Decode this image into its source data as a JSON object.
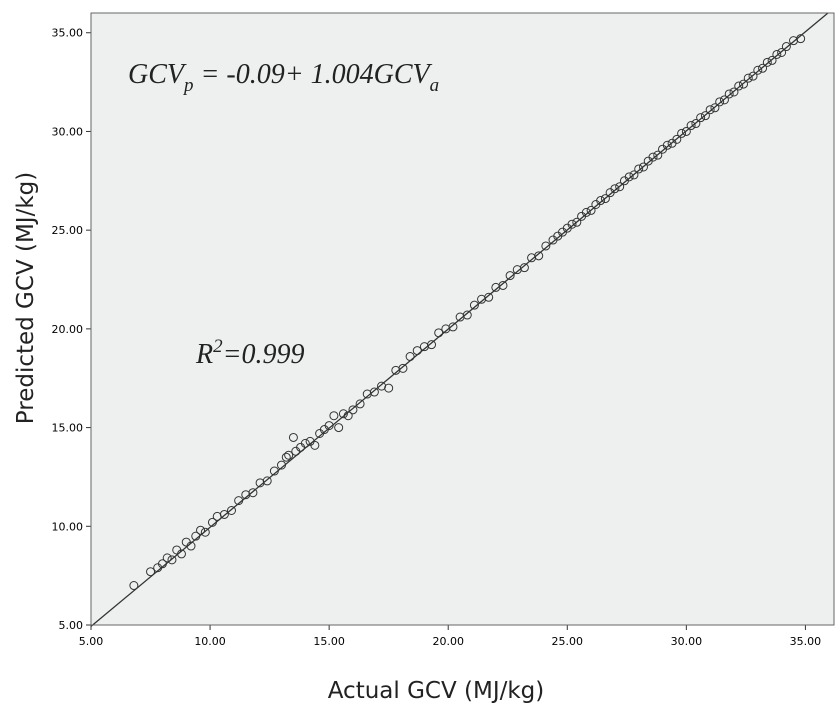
{
  "chart_data": {
    "type": "scatter",
    "title": "",
    "xlabel": "Actual GCV (MJ/kg)",
    "ylabel": "Predicted GCV (MJ/kg)",
    "xlim": [
      5,
      36.2
    ],
    "ylim": [
      5,
      36.0
    ],
    "x_ticks": [
      5,
      10,
      15,
      20,
      25,
      30,
      35
    ],
    "y_ticks": [
      5,
      10,
      15,
      20,
      25,
      30,
      35
    ],
    "x_tick_labels": [
      "5.00",
      "10.00",
      "15.00",
      "20.00",
      "25.00",
      "30.00",
      "35.00"
    ],
    "y_tick_labels": [
      "5.00",
      "10.00",
      "15.00",
      "20.00",
      "25.00",
      "30.00",
      "35.00"
    ],
    "grid": false,
    "legend": "none",
    "fit_line": {
      "intercept": -0.09,
      "slope": 1.004
    },
    "annotations": {
      "equation": {
        "lhs": "GCV",
        "lhs_sub": "p",
        "middle": " = -0.09+ 1.004GCV",
        "rhs_sub": "a"
      },
      "r_squared": {
        "base": "R",
        "sup": "2",
        "rest": "=0.999"
      }
    },
    "points": [
      [
        6.8,
        7.0
      ],
      [
        7.5,
        7.7
      ],
      [
        7.8,
        7.9
      ],
      [
        8.0,
        8.1
      ],
      [
        8.2,
        8.4
      ],
      [
        8.4,
        8.3
      ],
      [
        8.6,
        8.8
      ],
      [
        8.8,
        8.6
      ],
      [
        9.0,
        9.2
      ],
      [
        9.2,
        9.0
      ],
      [
        9.4,
        9.5
      ],
      [
        9.6,
        9.8
      ],
      [
        9.8,
        9.7
      ],
      [
        10.1,
        10.2
      ],
      [
        10.3,
        10.5
      ],
      [
        10.6,
        10.6
      ],
      [
        10.9,
        10.8
      ],
      [
        11.2,
        11.3
      ],
      [
        11.5,
        11.6
      ],
      [
        11.8,
        11.7
      ],
      [
        12.1,
        12.2
      ],
      [
        12.4,
        12.3
      ],
      [
        12.7,
        12.8
      ],
      [
        13.0,
        13.1
      ],
      [
        13.2,
        13.5
      ],
      [
        13.3,
        13.6
      ],
      [
        13.5,
        14.5
      ],
      [
        13.6,
        13.8
      ],
      [
        13.8,
        14.0
      ],
      [
        14.0,
        14.2
      ],
      [
        14.2,
        14.3
      ],
      [
        14.4,
        14.1
      ],
      [
        14.6,
        14.7
      ],
      [
        14.8,
        14.9
      ],
      [
        15.0,
        15.1
      ],
      [
        15.2,
        15.6
      ],
      [
        15.4,
        15.0
      ],
      [
        15.6,
        15.7
      ],
      [
        15.8,
        15.6
      ],
      [
        16.0,
        15.9
      ],
      [
        16.3,
        16.2
      ],
      [
        16.6,
        16.7
      ],
      [
        16.9,
        16.8
      ],
      [
        17.2,
        17.1
      ],
      [
        17.5,
        17.0
      ],
      [
        17.8,
        17.9
      ],
      [
        18.1,
        18.0
      ],
      [
        18.4,
        18.6
      ],
      [
        18.7,
        18.9
      ],
      [
        19.0,
        19.1
      ],
      [
        19.3,
        19.2
      ],
      [
        19.6,
        19.8
      ],
      [
        19.9,
        20.0
      ],
      [
        20.2,
        20.1
      ],
      [
        20.5,
        20.6
      ],
      [
        20.8,
        20.7
      ],
      [
        21.1,
        21.2
      ],
      [
        21.4,
        21.5
      ],
      [
        21.7,
        21.6
      ],
      [
        22.0,
        22.1
      ],
      [
        22.3,
        22.2
      ],
      [
        22.6,
        22.7
      ],
      [
        22.9,
        23.0
      ],
      [
        23.2,
        23.1
      ],
      [
        23.5,
        23.6
      ],
      [
        23.8,
        23.7
      ],
      [
        24.1,
        24.2
      ],
      [
        24.4,
        24.5
      ],
      [
        24.6,
        24.7
      ],
      [
        24.8,
        24.9
      ],
      [
        25.0,
        25.1
      ],
      [
        25.2,
        25.3
      ],
      [
        25.4,
        25.4
      ],
      [
        25.6,
        25.7
      ],
      [
        25.8,
        25.9
      ],
      [
        26.0,
        26.0
      ],
      [
        26.2,
        26.3
      ],
      [
        26.4,
        26.5
      ],
      [
        26.6,
        26.6
      ],
      [
        26.8,
        26.9
      ],
      [
        27.0,
        27.1
      ],
      [
        27.2,
        27.2
      ],
      [
        27.4,
        27.5
      ],
      [
        27.6,
        27.7
      ],
      [
        27.8,
        27.8
      ],
      [
        28.0,
        28.1
      ],
      [
        28.2,
        28.2
      ],
      [
        28.4,
        28.5
      ],
      [
        28.6,
        28.7
      ],
      [
        28.8,
        28.8
      ],
      [
        29.0,
        29.1
      ],
      [
        29.2,
        29.3
      ],
      [
        29.4,
        29.4
      ],
      [
        29.6,
        29.6
      ],
      [
        29.8,
        29.9
      ],
      [
        30.0,
        30.0
      ],
      [
        30.2,
        30.3
      ],
      [
        30.4,
        30.4
      ],
      [
        30.6,
        30.7
      ],
      [
        30.8,
        30.8
      ],
      [
        31.0,
        31.1
      ],
      [
        31.2,
        31.2
      ],
      [
        31.4,
        31.5
      ],
      [
        31.6,
        31.6
      ],
      [
        31.8,
        31.9
      ],
      [
        32.0,
        32.0
      ],
      [
        32.2,
        32.3
      ],
      [
        32.4,
        32.4
      ],
      [
        32.6,
        32.7
      ],
      [
        32.8,
        32.8
      ],
      [
        33.0,
        33.1
      ],
      [
        33.2,
        33.2
      ],
      [
        33.4,
        33.5
      ],
      [
        33.6,
        33.6
      ],
      [
        33.8,
        33.9
      ],
      [
        34.0,
        34.0
      ],
      [
        34.2,
        34.3
      ],
      [
        34.5,
        34.6
      ],
      [
        34.8,
        34.7
      ]
    ],
    "colors": {
      "plot_background": "#eef0f0",
      "marker_stroke": "#333333",
      "line": "#333333",
      "frame": "#666666"
    }
  }
}
